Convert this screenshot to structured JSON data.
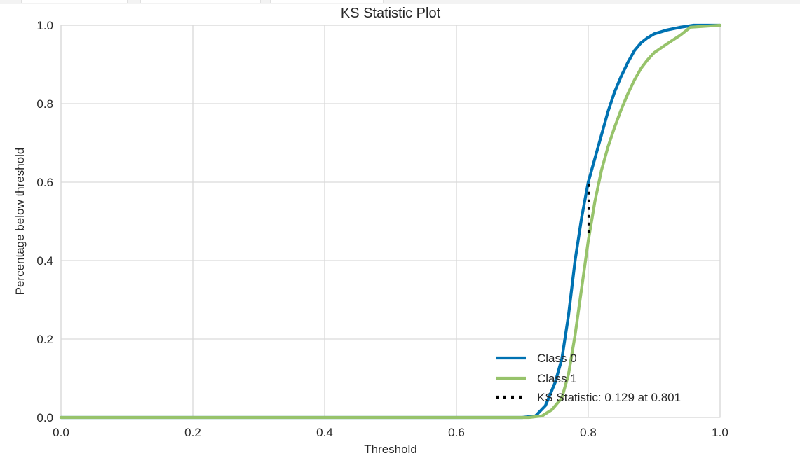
{
  "chart_data": {
    "type": "line",
    "title": "KS Statistic Plot",
    "xlabel": "Threshold",
    "ylabel": "Percentage below threshold",
    "xlim": [
      0.0,
      1.0
    ],
    "ylim": [
      0.0,
      1.0
    ],
    "grid": true,
    "legend_position": "lower-right",
    "x_ticks": [
      "0.0",
      "0.2",
      "0.4",
      "0.6",
      "0.8",
      "1.0"
    ],
    "y_ticks": [
      "0.0",
      "0.2",
      "0.4",
      "0.6",
      "0.8",
      "1.0"
    ],
    "series": [
      {
        "name": "Class 0",
        "color": "#0072b2",
        "x": [
          0.0,
          0.7,
          0.72,
          0.735,
          0.75,
          0.76,
          0.77,
          0.78,
          0.79,
          0.8,
          0.81,
          0.82,
          0.83,
          0.84,
          0.85,
          0.86,
          0.87,
          0.88,
          0.89,
          0.9,
          0.92,
          0.94,
          0.96,
          1.0
        ],
        "y": [
          0.0,
          0.0,
          0.004,
          0.03,
          0.09,
          0.15,
          0.26,
          0.4,
          0.51,
          0.6,
          0.66,
          0.72,
          0.78,
          0.83,
          0.87,
          0.905,
          0.935,
          0.955,
          0.968,
          0.978,
          0.988,
          0.995,
          1.0,
          1.0
        ]
      },
      {
        "name": "Class 1",
        "color": "#97c36b",
        "x": [
          0.0,
          0.71,
          0.73,
          0.745,
          0.76,
          0.77,
          0.78,
          0.79,
          0.8,
          0.81,
          0.82,
          0.83,
          0.84,
          0.85,
          0.86,
          0.87,
          0.88,
          0.89,
          0.9,
          0.92,
          0.94,
          0.955,
          1.0
        ],
        "y": [
          0.0,
          0.0,
          0.004,
          0.02,
          0.05,
          0.11,
          0.21,
          0.33,
          0.45,
          0.55,
          0.63,
          0.69,
          0.74,
          0.785,
          0.825,
          0.86,
          0.89,
          0.912,
          0.93,
          0.953,
          0.975,
          0.995,
          1.0
        ]
      }
    ],
    "ks_statistic": {
      "label": "KS Statistic: 0.129 at 0.801",
      "value": 0.129,
      "threshold": 0.801,
      "y_low": 0.47,
      "y_high": 0.6,
      "color": "#000000"
    }
  }
}
